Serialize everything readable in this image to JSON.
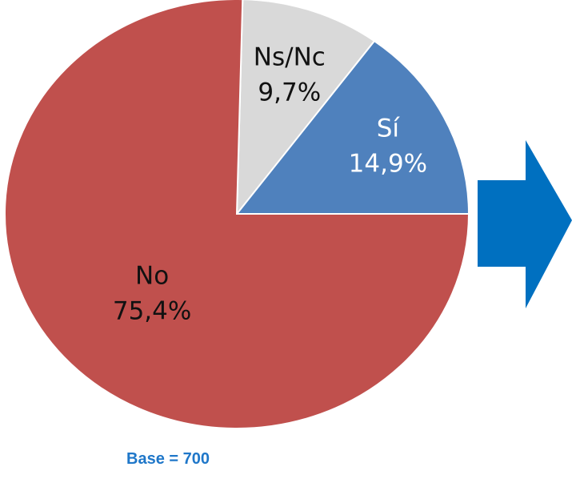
{
  "chart_data": {
    "type": "pie",
    "categories": [
      "Sí",
      "Ns/Nc",
      "No"
    ],
    "values": [
      14.9,
      9.7,
      75.4
    ],
    "value_labels": [
      "14,9%",
      "9,7%",
      "75,4%"
    ],
    "colors": [
      "#4f81bd",
      "#d9d9d9",
      "#c0504d"
    ],
    "label_colors": [
      "#ffffff",
      "#111111",
      "#111111"
    ],
    "start_angle_deg": 0,
    "direction": "counterclockwise",
    "legend": "none",
    "note": "Base = 700",
    "arrow_color": "#0070c0"
  }
}
